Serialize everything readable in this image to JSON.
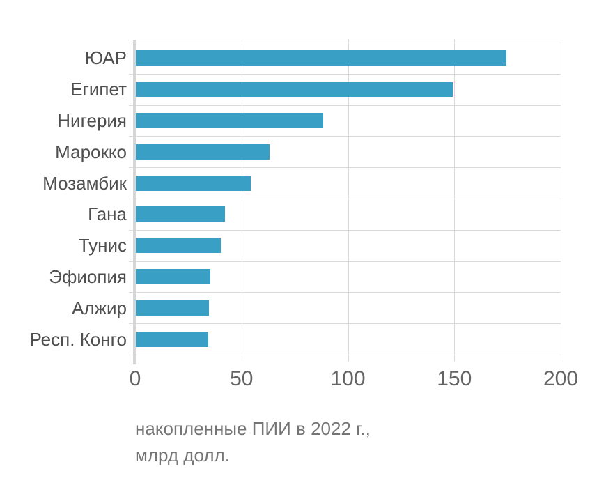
{
  "chart_data": {
    "type": "bar",
    "orientation": "horizontal",
    "title": "",
    "categories": [
      "ЮАР",
      "Египет",
      "Нигерия",
      "Марокко",
      "Мозамбик",
      "Гана",
      "Тунис",
      "Эфиопия",
      "Алжир",
      "Респ. Конго"
    ],
    "values": [
      174,
      149,
      88,
      63,
      54,
      42,
      40,
      35,
      34.5,
      34
    ],
    "xticks": [
      0,
      50,
      100,
      150,
      200
    ],
    "xlim": [
      0,
      200
    ],
    "grid": true,
    "legend": "none",
    "caption_lines": [
      "накопленные ПИИ в 2022 г.,",
      "млрд долл."
    ],
    "colors": {
      "bar": "#3a9fc5",
      "grid": "#d9d9d9",
      "axis": "#d6d6d6",
      "category_text": "#4f4f4f",
      "tick_text": "#646464",
      "caption_text": "#757575"
    }
  }
}
